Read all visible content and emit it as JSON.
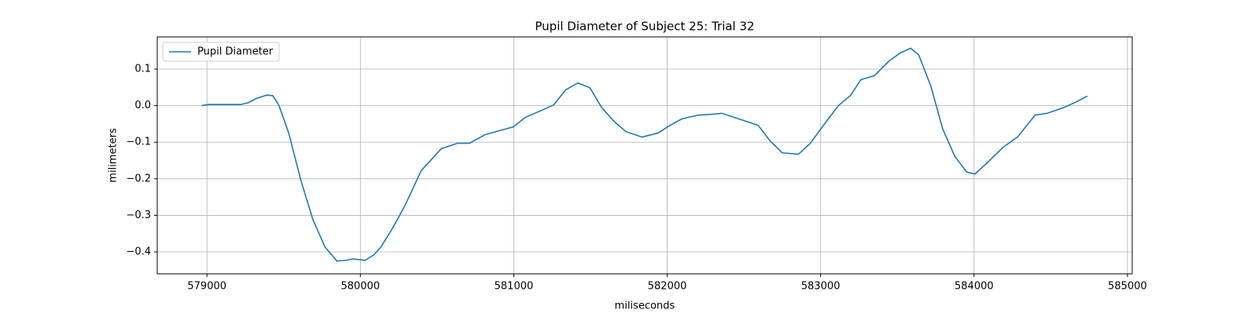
{
  "chart_data": {
    "type": "line",
    "title": "Pupil Diameter of Subject 25: Trial 32",
    "x_label": "miliseconds",
    "y_label": "milimeters",
    "x": [
      578963,
      579010,
      579220,
      579270,
      579324,
      579392,
      579430,
      579470,
      579533,
      579612,
      579690,
      579769,
      579847,
      579910,
      579950,
      580030,
      580088,
      580135,
      580213,
      580292,
      580396,
      580527,
      580632,
      580710,
      580815,
      580919,
      580998,
      581076,
      581181,
      581260,
      581338,
      581417,
      581496,
      581574,
      581653,
      581731,
      581836,
      581940,
      582018,
      582097,
      582202,
      582279,
      582358,
      582436,
      582515,
      582593,
      582672,
      582750,
      582855,
      582933,
      583038,
      583116,
      583195,
      583263,
      583351,
      583446,
      583519,
      583587,
      583639,
      583718,
      583796,
      583875,
      583953,
      584006,
      584084,
      584189,
      584283,
      584398,
      584477,
      584581,
      584660,
      584738
    ],
    "series": [
      {
        "name": "Pupil Diameter",
        "color": "#1f77b4",
        "values": [
          0.0,
          0.003,
          0.003,
          0.008,
          0.02,
          0.029,
          0.027,
          0.0,
          -0.075,
          -0.204,
          -0.311,
          -0.386,
          -0.425,
          -0.423,
          -0.419,
          -0.423,
          -0.408,
          -0.386,
          -0.333,
          -0.272,
          -0.178,
          -0.118,
          -0.103,
          -0.103,
          -0.079,
          -0.067,
          -0.058,
          -0.032,
          -0.013,
          0.002,
          0.043,
          0.062,
          0.049,
          -0.006,
          -0.043,
          -0.071,
          -0.086,
          -0.075,
          -0.054,
          -0.036,
          -0.026,
          -0.024,
          -0.021,
          -0.032,
          -0.043,
          -0.054,
          -0.097,
          -0.129,
          -0.133,
          -0.103,
          -0.043,
          0.0,
          0.028,
          0.071,
          0.082,
          0.122,
          0.144,
          0.157,
          0.139,
          0.054,
          -0.064,
          -0.139,
          -0.182,
          -0.187,
          -0.157,
          -0.114,
          -0.086,
          -0.026,
          -0.021,
          -0.006,
          0.009,
          0.026
        ]
      }
    ],
    "xlim": [
      578676,
      585031
    ],
    "ylim": [
      -0.46,
      0.188
    ],
    "xticks": [
      579000,
      580000,
      581000,
      582000,
      583000,
      584000,
      585000
    ],
    "yticks": [
      {
        "value": -0.4,
        "label": "−0.4"
      },
      {
        "value": -0.3,
        "label": "−0.3"
      },
      {
        "value": -0.2,
        "label": "−0.2"
      },
      {
        "value": -0.1,
        "label": "−0.1"
      },
      {
        "value": 0,
        "label": "0.0"
      },
      {
        "value": 0.1,
        "label": "0.1"
      }
    ],
    "grid": true,
    "legend": "upper left"
  }
}
